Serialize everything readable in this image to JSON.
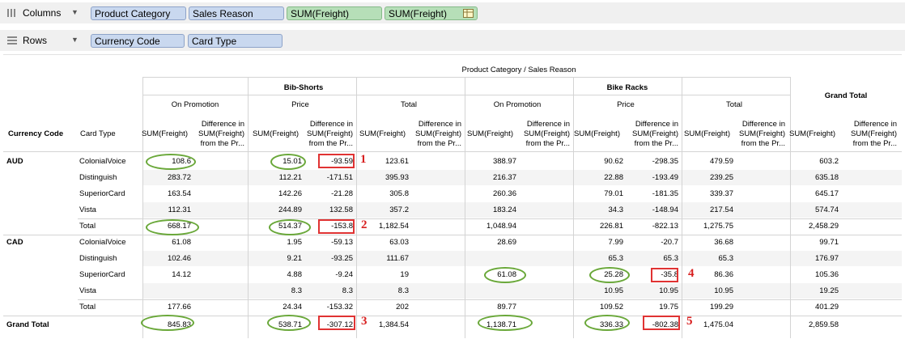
{
  "shelves": {
    "columns": {
      "label": "Columns",
      "pills": [
        "Product Category",
        "Sales Reason",
        "SUM(Freight)",
        "SUM(Freight)"
      ]
    },
    "rows": {
      "label": "Rows",
      "pills": [
        "Currency Code",
        "Card Type"
      ]
    }
  },
  "table": {
    "top_header": "Product Category / Sales Reason",
    "categories": [
      "Bib-Shorts",
      "Bike Racks"
    ],
    "reasons": [
      "On Promotion",
      "Price",
      "Total"
    ],
    "grand_total_header": "Grand Total",
    "row_headers": [
      "Currency Code",
      "Card Type"
    ],
    "measure_sum": "SUM(Freight)",
    "measure_diff": [
      "Difference in",
      "SUM(Freight)",
      "from the Pr..."
    ],
    "groups": [
      {
        "code": "AUD",
        "rows": [
          {
            "card": "ColonialVoice",
            "cells": [
              "108.6",
              "",
              "15.01",
              "-93.59",
              "123.61",
              "",
              "388.97",
              "",
              "90.62",
              "-298.35",
              "479.59",
              "",
              "603.2",
              ""
            ]
          },
          {
            "card": "Distinguish",
            "cells": [
              "283.72",
              "",
              "112.21",
              "-171.51",
              "395.93",
              "",
              "216.37",
              "",
              "22.88",
              "-193.49",
              "239.25",
              "",
              "635.18",
              ""
            ]
          },
          {
            "card": "SuperiorCard",
            "cells": [
              "163.54",
              "",
              "142.26",
              "-21.28",
              "305.8",
              "",
              "260.36",
              "",
              "79.01",
              "-181.35",
              "339.37",
              "",
              "645.17",
              ""
            ]
          },
          {
            "card": "Vista",
            "cells": [
              "112.31",
              "",
              "244.89",
              "132.58",
              "357.2",
              "",
              "183.24",
              "",
              "34.3",
              "-148.94",
              "217.54",
              "",
              "574.74",
              ""
            ]
          },
          {
            "card": "Total",
            "cells": [
              "668.17",
              "",
              "514.37",
              "-153.8",
              "1,182.54",
              "",
              "1,048.94",
              "",
              "226.81",
              "-822.13",
              "1,275.75",
              "",
              "2,458.29",
              ""
            ]
          }
        ]
      },
      {
        "code": "CAD",
        "rows": [
          {
            "card": "ColonialVoice",
            "cells": [
              "61.08",
              "",
              "1.95",
              "-59.13",
              "63.03",
              "",
              "28.69",
              "",
              "7.99",
              "-20.7",
              "36.68",
              "",
              "99.71",
              ""
            ]
          },
          {
            "card": "Distinguish",
            "cells": [
              "102.46",
              "",
              "9.21",
              "-93.25",
              "111.67",
              "",
              "",
              "",
              "65.3",
              "65.3",
              "65.3",
              "",
              "176.97",
              ""
            ]
          },
          {
            "card": "SuperiorCard",
            "cells": [
              "14.12",
              "",
              "4.88",
              "-9.24",
              "19",
              "",
              "61.08",
              "",
              "25.28",
              "-35.8",
              "86.36",
              "",
              "105.36",
              ""
            ]
          },
          {
            "card": "Vista",
            "cells": [
              "",
              "",
              "8.3",
              "8.3",
              "8.3",
              "",
              "",
              "",
              "10.95",
              "10.95",
              "10.95",
              "",
              "19.25",
              ""
            ]
          },
          {
            "card": "Total",
            "cells": [
              "177.66",
              "",
              "24.34",
              "-153.32",
              "202",
              "",
              "89.77",
              "",
              "109.52",
              "19.75",
              "199.29",
              "",
              "401.29",
              ""
            ]
          }
        ]
      }
    ],
    "grand_total_row": {
      "label": "Grand Total",
      "cells": [
        "845.83",
        "",
        "538.71",
        "-307.12",
        "1,384.54",
        "",
        "1,138.71",
        "",
        "336.33",
        "-802.38",
        "1,475.04",
        "",
        "2,859.58",
        ""
      ]
    }
  },
  "annotations": {
    "markers": [
      "1",
      "2",
      "3",
      "4",
      "5"
    ],
    "oval_color": "#6aa83a",
    "box_color": "#e03333"
  }
}
